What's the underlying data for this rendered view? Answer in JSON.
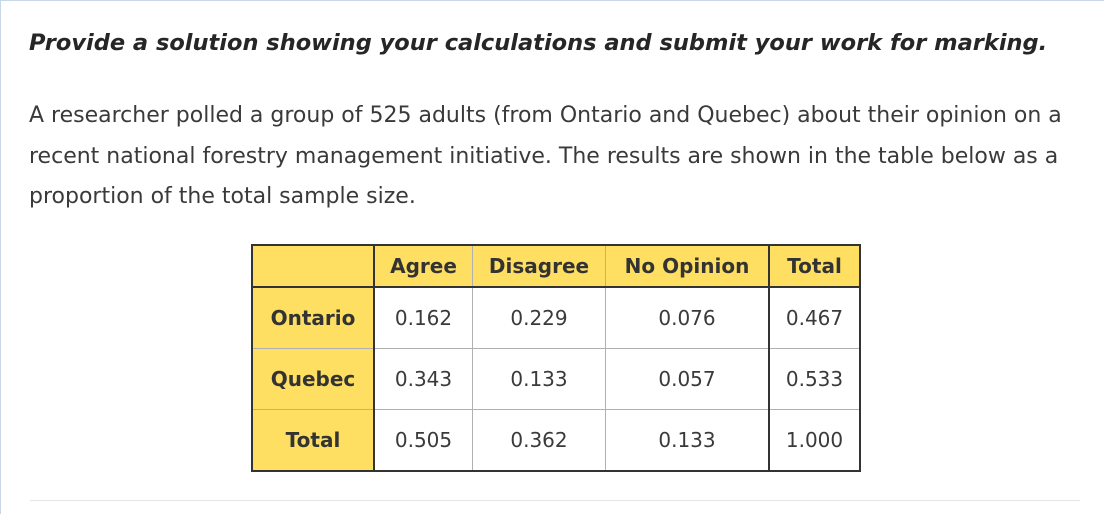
{
  "instruction": "Provide a solution showing your calculations and submit your work for marking.",
  "paragraph": "A researcher polled a group of 525 adults (from Ontario and Quebec) about their opinion on a recent national forestry management initiative. The results are shown in the table below as a proportion of the total sample size.",
  "table": {
    "headers": [
      "",
      "Agree",
      "Disagree",
      "No Opinion",
      "Total"
    ],
    "rows": [
      {
        "label": "Ontario",
        "values": [
          "0.162",
          "0.229",
          "0.076",
          "0.467"
        ]
      },
      {
        "label": "Quebec",
        "values": [
          "0.343",
          "0.133",
          "0.057",
          "0.533"
        ]
      },
      {
        "label": "Total",
        "values": [
          "0.505",
          "0.362",
          "0.133",
          "1.000"
        ]
      }
    ]
  },
  "colors": {
    "header_fill": "#fedf62",
    "table_border": "#333333"
  }
}
